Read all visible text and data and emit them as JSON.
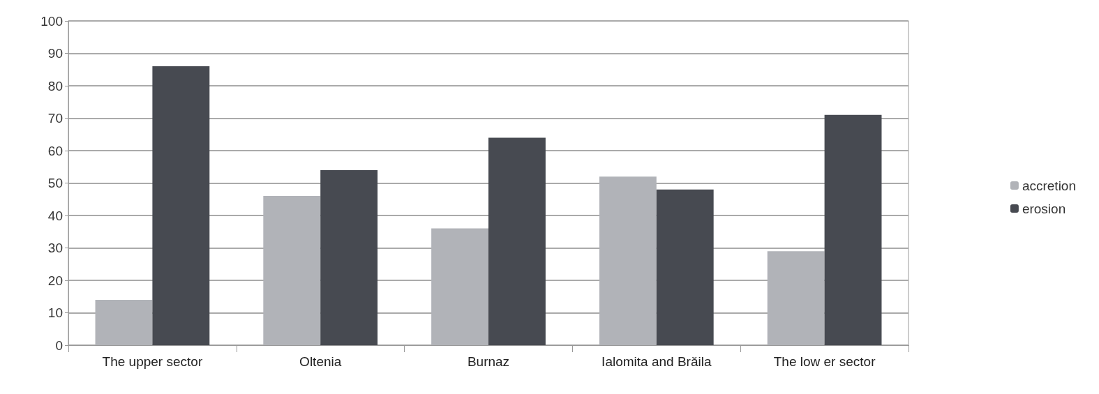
{
  "chart_data": {
    "type": "bar",
    "categories": [
      "The upper sector",
      "Oltenia",
      "Burnaz",
      "Ialomita and Brăila",
      "The low er sector"
    ],
    "series": [
      {
        "name": "accretion",
        "color": "#b1b3b8",
        "values": [
          14,
          46,
          36,
          52,
          29
        ]
      },
      {
        "name": "erosion",
        "color": "#474a51",
        "values": [
          86,
          54,
          64,
          48,
          71
        ]
      }
    ],
    "ylim": [
      0,
      100
    ],
    "yticks": [
      0,
      10,
      20,
      30,
      40,
      50,
      60,
      70,
      80,
      90,
      100
    ],
    "grid": "y",
    "legend": "right"
  }
}
